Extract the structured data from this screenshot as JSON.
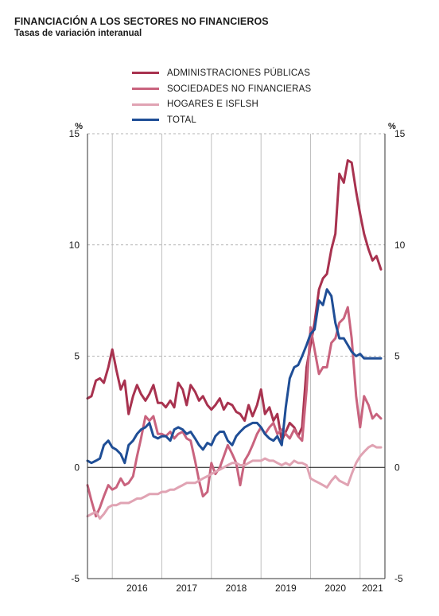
{
  "header": {
    "title": "FINANCIACIÓN A LOS SECTORES NO FINANCIEROS",
    "subtitle": "Tasas de variación interanual"
  },
  "legend": [
    {
      "label": "ADMINISTRACIONES PÚBLICAS",
      "color": "#a8324f"
    },
    {
      "label": "SOCIEDADES NO FINANCIERAS",
      "color": "#c9637e"
    },
    {
      "label": "HOGARES E ISFLSH",
      "color": "#e0a3b3"
    },
    {
      "label": "TOTAL",
      "color": "#1f4e96"
    }
  ],
  "chart_data": {
    "type": "line",
    "title": "FINANCIACIÓN A LOS SECTORES NO FINANCIEROS",
    "subtitle": "Tasas de variación interanual",
    "y_unit_left": "%",
    "y_unit_right": "%",
    "ylim": [
      -5,
      15
    ],
    "yticks": [
      -5,
      0,
      5,
      10,
      15
    ],
    "x_start": 2015.5,
    "x_end": 2021.5,
    "year_labels": [
      "2016",
      "2017",
      "2018",
      "2019",
      "2020",
      "2021"
    ],
    "year_boundaries": [
      2016,
      2017,
      2018,
      2019,
      2020,
      2021
    ],
    "grid": "dashed horizontal and vertical year separators",
    "legend_position": "top-center",
    "series": [
      {
        "name": "ADMINISTRACIONES PÚBLICAS",
        "color": "#a8324f",
        "x": [
          2015.5,
          2015.58,
          2015.67,
          2015.75,
          2015.83,
          2015.92,
          2016.0,
          2016.08,
          2016.17,
          2016.25,
          2016.33,
          2016.42,
          2016.5,
          2016.58,
          2016.67,
          2016.75,
          2016.83,
          2016.92,
          2017.0,
          2017.08,
          2017.17,
          2017.25,
          2017.33,
          2017.42,
          2017.5,
          2017.58,
          2017.67,
          2017.75,
          2017.83,
          2017.92,
          2018.0,
          2018.08,
          2018.17,
          2018.25,
          2018.33,
          2018.42,
          2018.5,
          2018.58,
          2018.67,
          2018.75,
          2018.83,
          2018.92,
          2019.0,
          2019.08,
          2019.17,
          2019.25,
          2019.33,
          2019.42,
          2019.5,
          2019.58,
          2019.67,
          2019.75,
          2019.83,
          2019.92,
          2020.0,
          2020.08,
          2020.17,
          2020.25,
          2020.33,
          2020.42,
          2020.5,
          2020.58,
          2020.67,
          2020.75,
          2020.83,
          2020.92,
          2021.0,
          2021.08,
          2021.17,
          2021.25,
          2021.33,
          2021.42
        ],
        "values": [
          3.1,
          3.2,
          3.9,
          4.0,
          3.8,
          4.5,
          5.3,
          4.4,
          3.5,
          3.9,
          2.4,
          3.2,
          3.7,
          3.3,
          3.0,
          3.3,
          3.7,
          2.9,
          2.9,
          2.7,
          3.0,
          2.7,
          3.8,
          3.5,
          2.8,
          3.7,
          3.4,
          3.0,
          3.2,
          2.8,
          2.6,
          2.8,
          3.1,
          2.6,
          2.9,
          2.8,
          2.5,
          2.4,
          2.1,
          2.8,
          2.3,
          2.8,
          3.5,
          2.4,
          2.7,
          2.1,
          2.4,
          1.2,
          1.6,
          2.0,
          1.8,
          1.4,
          1.8,
          4.5,
          5.5,
          6.5,
          8.0,
          8.5,
          8.7,
          9.8,
          10.5,
          13.2,
          12.8,
          13.8,
          13.7,
          12.4,
          11.4,
          10.5,
          9.8,
          9.3,
          9.5,
          8.9
        ]
      },
      {
        "name": "SOCIEDADES NO FINANCIERAS",
        "color": "#c9637e",
        "x": [
          2015.5,
          2015.58,
          2015.67,
          2015.75,
          2015.83,
          2015.92,
          2016.0,
          2016.08,
          2016.17,
          2016.25,
          2016.33,
          2016.42,
          2016.5,
          2016.58,
          2016.67,
          2016.75,
          2016.83,
          2016.92,
          2017.0,
          2017.08,
          2017.17,
          2017.25,
          2017.33,
          2017.42,
          2017.5,
          2017.58,
          2017.67,
          2017.75,
          2017.83,
          2017.92,
          2018.0,
          2018.08,
          2018.17,
          2018.25,
          2018.33,
          2018.42,
          2018.5,
          2018.58,
          2018.67,
          2018.75,
          2018.83,
          2018.92,
          2019.0,
          2019.08,
          2019.17,
          2019.25,
          2019.33,
          2019.42,
          2019.5,
          2019.58,
          2019.67,
          2019.75,
          2019.83,
          2019.92,
          2020.0,
          2020.08,
          2020.17,
          2020.25,
          2020.33,
          2020.42,
          2020.5,
          2020.58,
          2020.67,
          2020.75,
          2020.83,
          2020.92,
          2021.0,
          2021.08,
          2021.17,
          2021.25,
          2021.33,
          2021.42
        ],
        "values": [
          -0.8,
          -1.5,
          -2.2,
          -1.8,
          -1.3,
          -0.8,
          -1.0,
          -0.9,
          -0.5,
          -0.8,
          -0.7,
          -0.4,
          0.5,
          1.3,
          2.3,
          2.1,
          2.3,
          1.5,
          1.5,
          1.4,
          1.6,
          1.3,
          1.5,
          1.6,
          1.3,
          1.2,
          0.3,
          -0.6,
          -1.3,
          -1.1,
          0.2,
          -0.3,
          0.0,
          0.5,
          1.0,
          0.6,
          0.2,
          -0.8,
          0.3,
          0.6,
          1.0,
          1.5,
          1.8,
          1.5,
          1.8,
          2.0,
          1.5,
          1.7,
          1.5,
          1.3,
          1.7,
          1.4,
          1.2,
          3.5,
          6.3,
          5.3,
          4.2,
          4.5,
          4.5,
          5.6,
          5.8,
          6.5,
          6.7,
          7.2,
          5.8,
          3.2,
          1.8,
          3.2,
          2.8,
          2.2,
          2.4,
          2.2
        ]
      },
      {
        "name": "HOGARES E ISFLSH",
        "color": "#e0a3b3",
        "x": [
          2015.5,
          2015.58,
          2015.67,
          2015.75,
          2015.83,
          2015.92,
          2016.0,
          2016.08,
          2016.17,
          2016.25,
          2016.33,
          2016.42,
          2016.5,
          2016.58,
          2016.67,
          2016.75,
          2016.83,
          2016.92,
          2017.0,
          2017.08,
          2017.17,
          2017.25,
          2017.33,
          2017.42,
          2017.5,
          2017.58,
          2017.67,
          2017.75,
          2017.83,
          2017.92,
          2018.0,
          2018.08,
          2018.17,
          2018.25,
          2018.33,
          2018.42,
          2018.5,
          2018.58,
          2018.67,
          2018.75,
          2018.83,
          2018.92,
          2019.0,
          2019.08,
          2019.17,
          2019.25,
          2019.33,
          2019.42,
          2019.5,
          2019.58,
          2019.67,
          2019.75,
          2019.83,
          2019.92,
          2020.0,
          2020.08,
          2020.17,
          2020.25,
          2020.33,
          2020.42,
          2020.5,
          2020.58,
          2020.67,
          2020.75,
          2020.83,
          2020.92,
          2021.0,
          2021.08,
          2021.17,
          2021.25,
          2021.33,
          2021.42
        ],
        "values": [
          -2.2,
          -2.1,
          -2.0,
          -2.3,
          -2.1,
          -1.8,
          -1.7,
          -1.7,
          -1.6,
          -1.6,
          -1.6,
          -1.5,
          -1.4,
          -1.4,
          -1.3,
          -1.2,
          -1.2,
          -1.2,
          -1.1,
          -1.1,
          -1.0,
          -1.0,
          -0.9,
          -0.8,
          -0.7,
          -0.7,
          -0.7,
          -0.6,
          -0.5,
          -0.4,
          -0.3,
          -0.2,
          -0.1,
          0.0,
          0.1,
          0.2,
          0.2,
          0.1,
          0.1,
          0.2,
          0.3,
          0.3,
          0.3,
          0.4,
          0.3,
          0.3,
          0.2,
          0.1,
          0.2,
          0.1,
          0.3,
          0.2,
          0.2,
          0.1,
          -0.5,
          -0.6,
          -0.7,
          -0.8,
          -0.9,
          -0.6,
          -0.4,
          -0.6,
          -0.7,
          -0.8,
          -0.3,
          0.2,
          0.5,
          0.7,
          0.9,
          1.0,
          0.9,
          0.9
        ]
      },
      {
        "name": "TOTAL",
        "color": "#1f4e96",
        "x": [
          2015.5,
          2015.58,
          2015.67,
          2015.75,
          2015.83,
          2015.92,
          2016.0,
          2016.08,
          2016.17,
          2016.25,
          2016.33,
          2016.42,
          2016.5,
          2016.58,
          2016.67,
          2016.75,
          2016.83,
          2016.92,
          2017.0,
          2017.08,
          2017.17,
          2017.25,
          2017.33,
          2017.42,
          2017.5,
          2017.58,
          2017.67,
          2017.75,
          2017.83,
          2017.92,
          2018.0,
          2018.08,
          2018.17,
          2018.25,
          2018.33,
          2018.42,
          2018.5,
          2018.58,
          2018.67,
          2018.75,
          2018.83,
          2018.92,
          2019.0,
          2019.08,
          2019.17,
          2019.25,
          2019.33,
          2019.42,
          2019.5,
          2019.58,
          2019.67,
          2019.75,
          2019.83,
          2019.92,
          2020.0,
          2020.08,
          2020.17,
          2020.25,
          2020.33,
          2020.42,
          2020.5,
          2020.58,
          2020.67,
          2020.75,
          2020.83,
          2020.92,
          2021.0,
          2021.08,
          2021.17,
          2021.25,
          2021.33,
          2021.42
        ],
        "values": [
          0.3,
          0.2,
          0.3,
          0.4,
          1.0,
          1.2,
          0.9,
          0.8,
          0.6,
          0.2,
          1.0,
          1.2,
          1.5,
          1.7,
          1.8,
          2.0,
          1.4,
          1.3,
          1.4,
          1.4,
          1.2,
          1.7,
          1.8,
          1.7,
          1.5,
          1.6,
          1.3,
          1.0,
          0.8,
          1.1,
          1.0,
          1.4,
          1.6,
          1.6,
          1.2,
          1.0,
          1.4,
          1.6,
          1.8,
          1.9,
          2.0,
          2.0,
          1.8,
          1.5,
          1.3,
          1.2,
          1.4,
          1.0,
          2.7,
          4.0,
          4.5,
          4.6,
          5.0,
          5.5,
          6.0,
          6.2,
          7.5,
          7.3,
          8.0,
          7.7,
          6.5,
          5.8,
          5.8,
          5.5,
          5.2,
          5.0,
          5.1,
          4.9,
          4.9,
          4.9,
          4.9,
          4.9
        ]
      }
    ]
  }
}
